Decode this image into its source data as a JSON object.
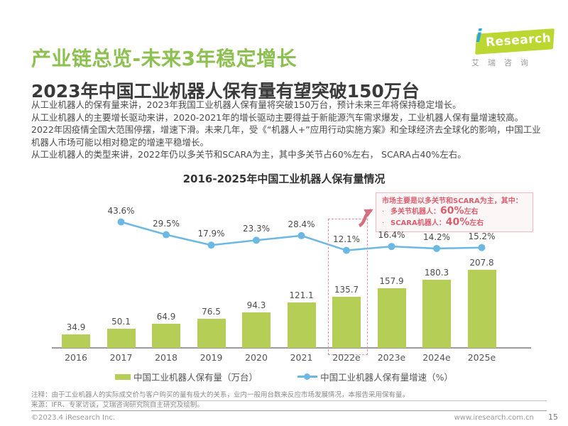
{
  "header": {
    "title": "产业链总览-未来3年稳定增长",
    "subtitle": "2023年中国工业机器人保有量有望突破150万台"
  },
  "logo": {
    "i": "i",
    "text": "Research",
    "subtext": "艾瑞咨询"
  },
  "body": {
    "paragraphs": [
      "从工业机器人的保有量来讲，2023年我国工业机器人保有量将突破150万台，预计未来三年将保持稳定增长。",
      "从工业机器人的主要增长驱动来讲，2020-2021年的增长驱动主要得益于新能源汽车需求爆发，工业机器人保有量增速较高。2022年因疫情全国大范围停摆，增速下滑。未来几年，受《“机器人+”应用行动实施方案》和全球经济去全球化的影响，中国工业机器人市场可能以相对稳定的增速平稳增长。",
      "从工业机器人的类型来讲，2022年仍以多关节和SCARA为主，其中多关节占60%左右， SCARA占40%左右。"
    ]
  },
  "chart_data": {
    "type": "bar",
    "title": "2016-2025年中国工业机器人保有量情况",
    "categories": [
      "2016",
      "2017",
      "2018",
      "2019",
      "2020",
      "2021",
      "2022e",
      "2023e",
      "2024e",
      "2025e"
    ],
    "series": [
      {
        "name": "中国工业机器人保有量（万台）",
        "type": "bar",
        "color": "#b5ce55",
        "values": [
          34.9,
          50.1,
          64.9,
          76.5,
          94.3,
          121.1,
          135.7,
          157.9,
          180.3,
          207.8
        ]
      },
      {
        "name": "中国工业机器人保有量增速（%）",
        "type": "line",
        "color": "#6cb8e4",
        "values": [
          null,
          43.6,
          29.5,
          17.9,
          23.3,
          28.4,
          12.1,
          16.4,
          14.2,
          15.2
        ]
      }
    ],
    "ylim": [
      0,
      220
    ],
    "highlight_category": "2022e",
    "annotation": {
      "bullet": "·",
      "title": "市场主要是以多关节和SCARA为主，其中：",
      "items": [
        {
          "label": "多关节机器人：",
          "value": "60%",
          "suffix": "左右"
        },
        {
          "label": "SCARA机器人：",
          "value": "40%",
          "suffix": "左右"
        }
      ]
    }
  },
  "footer": {
    "note": "注释：由于工业机器人的实际成交价与客户购买的量有极大的关系，业内一般用台数来反应市场发展情况，本报告采用保有量。",
    "source": "来源：IFR、专家访谈，艾瑞咨询研究院自主研究及绘制。",
    "copyright": "©2023.4 iResearch Inc.",
    "website": "www.iresearch.com.cn",
    "page_number": "15"
  }
}
